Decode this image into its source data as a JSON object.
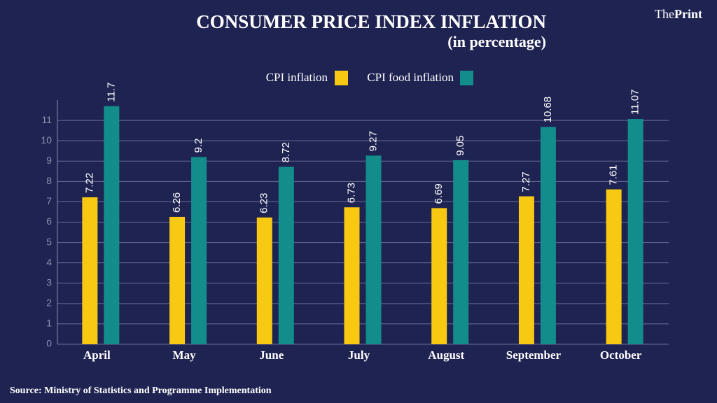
{
  "chart_data": {
    "type": "bar",
    "title": "CONSUMER PRICE INDEX INFLATION",
    "subtitle": "(in percentage)",
    "brand": {
      "prefix": "The",
      "name": "Print"
    },
    "source": "Source: Ministry of Statistics and Programme Implementation",
    "categories": [
      "April",
      "May",
      "June",
      "July",
      "August",
      "September",
      "October"
    ],
    "series": [
      {
        "name": "CPI inflation",
        "color": "#f7c912",
        "values": [
          7.22,
          6.26,
          6.23,
          6.73,
          6.69,
          7.27,
          7.61
        ]
      },
      {
        "name": "CPI food inflation",
        "color": "#138c8c",
        "values": [
          11.7,
          9.2,
          8.72,
          9.27,
          9.05,
          10.68,
          11.07
        ]
      }
    ],
    "ylim": [
      0,
      12
    ],
    "yticks": [
      0,
      1,
      2,
      3,
      4,
      5,
      6,
      7,
      8,
      9,
      10,
      11
    ],
    "grid": true
  }
}
